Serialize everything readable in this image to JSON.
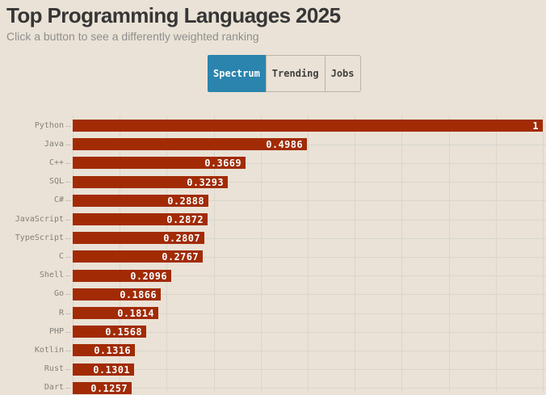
{
  "header": {
    "title": "Top Programming Languages 2025",
    "subtitle": "Click a button to see a differently weighted ranking"
  },
  "buttons": [
    {
      "label": "Spectrum",
      "active": true
    },
    {
      "label": "Trending",
      "active": false
    },
    {
      "label": "Jobs",
      "active": false
    }
  ],
  "chart_data": {
    "type": "bar",
    "orientation": "horizontal",
    "title": "Top Programming Languages 2025",
    "categories": [
      "Python",
      "Java",
      "C++",
      "SQL",
      "C#",
      "JavaScript",
      "TypeScript",
      "C",
      "Shell",
      "Go",
      "R",
      "PHP",
      "Kotlin",
      "Rust",
      "Dart"
    ],
    "values": [
      1,
      0.4986,
      0.3669,
      0.3293,
      0.2888,
      0.2872,
      0.2807,
      0.2767,
      0.2096,
      0.1866,
      0.1814,
      0.1568,
      0.1316,
      0.1301,
      0.1257
    ],
    "value_labels": [
      "1",
      "0.4986",
      "0.3669",
      "0.3293",
      "0.2888",
      "0.2872",
      "0.2807",
      "0.2767",
      "0.2096",
      "0.1866",
      "0.1814",
      "0.1568",
      "0.1316",
      "0.1301",
      "0.1257"
    ],
    "xlabel": "",
    "ylabel": "",
    "xlim": [
      0,
      1
    ],
    "grid": true,
    "gridline_interval": 0.1,
    "legend": "none"
  },
  "colors": {
    "background": "#EAE2D6",
    "bar": "#A22B05",
    "active_button": "#2B84AD",
    "button_border": "#BBB3A6",
    "grid": "#D8D6CF",
    "title_text": "#363636",
    "subtitle_text": "#8F8F8F",
    "axis_label": "#82807A",
    "value_label": "#FFFFFF"
  }
}
